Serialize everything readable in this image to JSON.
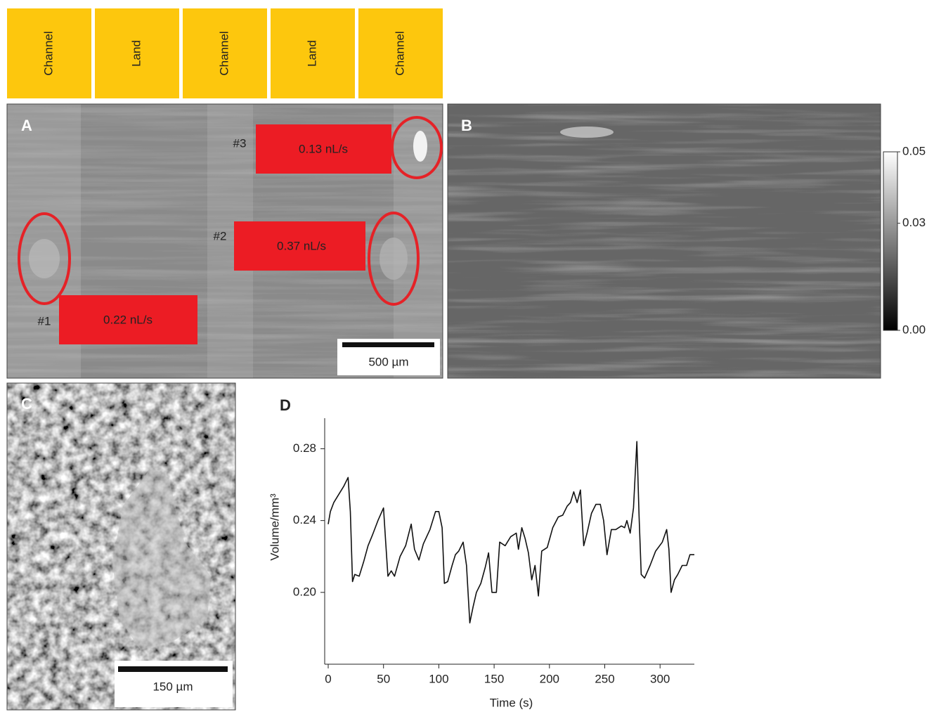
{
  "header_labels": [
    "Channel",
    "Land",
    "Channel",
    "Land",
    "Channel"
  ],
  "panel_a": {
    "label": "A",
    "scale_bar": "500 µm",
    "annotations": [
      {
        "id": "#1",
        "rate": "0.22 nL/s"
      },
      {
        "id": "#2",
        "rate": "0.37 nL/s"
      },
      {
        "id": "#3",
        "rate": "0.13 nL/s"
      }
    ]
  },
  "panel_b": {
    "label": "B",
    "colorbar_lim": [
      0,
      0.05
    ],
    "colorbar_ticks": [
      0.05,
      0.03,
      {
        "value": 0,
        "label": "0.00"
      }
    ]
  },
  "panel_c": {
    "label": "C",
    "scale_bar": "150 µm"
  },
  "chart_data": {
    "type": "line",
    "panel_label": "D",
    "x_label": "Time (s)",
    "y_label": "Volume/mm³",
    "color": "#111111",
    "x": [
      0,
      2,
      5,
      10,
      14,
      18,
      20,
      22,
      24,
      28,
      32,
      36,
      40,
      45,
      50,
      52,
      54,
      57,
      60,
      65,
      70,
      75,
      78,
      82,
      86,
      92,
      97,
      100,
      103,
      105,
      108,
      112,
      115,
      118,
      122,
      125,
      128,
      131,
      134,
      138,
      142,
      145,
      148,
      152,
      155,
      160,
      165,
      170,
      172,
      175,
      178,
      181,
      184,
      187,
      190,
      193,
      198,
      203,
      208,
      212,
      216,
      219,
      222,
      225,
      228,
      231,
      234,
      238,
      242,
      246,
      249,
      252,
      256,
      260,
      265,
      268,
      270,
      273,
      276,
      279,
      281,
      283,
      286,
      291,
      296,
      302,
      306,
      308,
      310,
      313,
      316,
      320,
      324,
      327,
      331
    ],
    "values": [
      0.238,
      0.245,
      0.25,
      0.255,
      0.259,
      0.264,
      0.245,
      0.206,
      0.21,
      0.209,
      0.217,
      0.226,
      0.232,
      0.24,
      0.247,
      0.228,
      0.209,
      0.212,
      0.209,
      0.22,
      0.226,
      0.238,
      0.224,
      0.218,
      0.227,
      0.235,
      0.245,
      0.245,
      0.236,
      0.205,
      0.206,
      0.215,
      0.221,
      0.223,
      0.228,
      0.215,
      0.183,
      0.192,
      0.2,
      0.205,
      0.214,
      0.222,
      0.2,
      0.2,
      0.228,
      0.226,
      0.231,
      0.233,
      0.224,
      0.236,
      0.23,
      0.222,
      0.207,
      0.215,
      0.198,
      0.223,
      0.225,
      0.236,
      0.242,
      0.243,
      0.248,
      0.25,
      0.256,
      0.25,
      0.257,
      0.226,
      0.233,
      0.244,
      0.249,
      0.249,
      0.24,
      0.221,
      0.235,
      0.235,
      0.237,
      0.236,
      0.24,
      0.233,
      0.247,
      0.284,
      0.243,
      0.21,
      0.208,
      0.215,
      0.223,
      0.228,
      0.235,
      0.224,
      0.2,
      0.207,
      0.21,
      0.215,
      0.215,
      0.221,
      0.221
    ],
    "xlim": [
      0,
      331
    ],
    "ylim": [
      0.16,
      0.297
    ],
    "xticks": [
      0,
      50,
      100,
      150,
      200,
      250,
      300
    ],
    "yticks": [
      {
        "value": 0.2,
        "label": "0.20"
      },
      0.24,
      0.28
    ]
  }
}
